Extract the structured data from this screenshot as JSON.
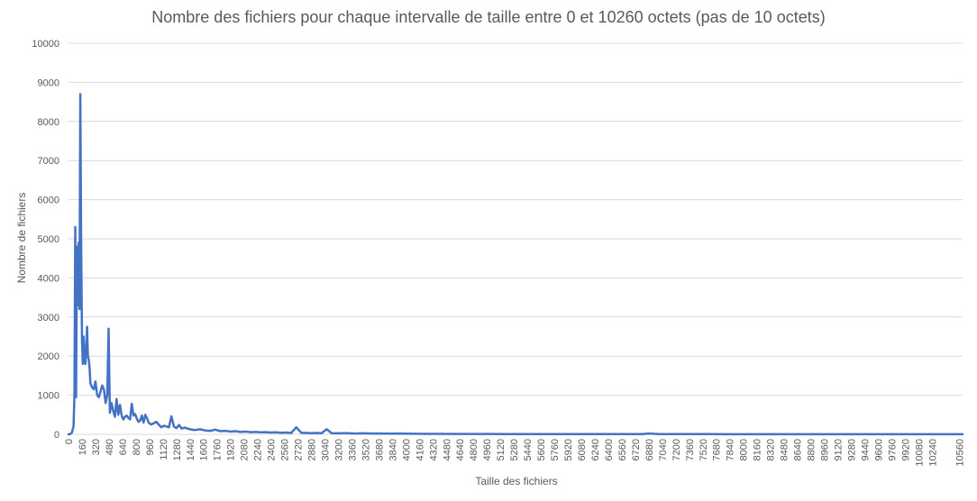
{
  "chart_data": {
    "type": "line",
    "title": "Nombre des fichiers pour chaque intervalle de taille entre 0 et 10260 octets (pas de 10 octets)",
    "xlabel": "Taille des fichiers",
    "ylabel": "Nombre de fichiers",
    "xlim": [
      0,
      10600
    ],
    "ylim": [
      0,
      10000
    ],
    "yticks": [
      0,
      1000,
      2000,
      3000,
      4000,
      5000,
      6000,
      7000,
      8000,
      9000,
      10000
    ],
    "xticks": [
      0,
      160,
      320,
      480,
      640,
      800,
      960,
      1120,
      1280,
      1440,
      1600,
      1760,
      1920,
      2080,
      2240,
      2400,
      2560,
      2720,
      2880,
      3040,
      3200,
      3360,
      3520,
      3680,
      3840,
      4000,
      4160,
      4320,
      4480,
      4640,
      4800,
      4960,
      5120,
      5280,
      5440,
      5600,
      5760,
      5920,
      6080,
      6240,
      6400,
      6560,
      6720,
      6880,
      7040,
      7200,
      7360,
      7520,
      7680,
      7840,
      8000,
      8160,
      8320,
      8480,
      8640,
      8800,
      8960,
      9120,
      9280,
      9440,
      9600,
      9760,
      9920,
      10080,
      10240,
      10560
    ],
    "grid": true,
    "series_color": "#4472c4",
    "points": [
      [
        0,
        0
      ],
      [
        20,
        10
      ],
      [
        40,
        40
      ],
      [
        60,
        200
      ],
      [
        70,
        1000
      ],
      [
        80,
        5300
      ],
      [
        90,
        950
      ],
      [
        100,
        4800
      ],
      [
        110,
        3300
      ],
      [
        120,
        4900
      ],
      [
        130,
        3200
      ],
      [
        140,
        8700
      ],
      [
        150,
        5000
      ],
      [
        160,
        2400
      ],
      [
        170,
        1800
      ],
      [
        180,
        2500
      ],
      [
        190,
        2000
      ],
      [
        200,
        1800
      ],
      [
        210,
        2150
      ],
      [
        220,
        2750
      ],
      [
        230,
        2000
      ],
      [
        240,
        1900
      ],
      [
        250,
        1700
      ],
      [
        260,
        1300
      ],
      [
        280,
        1200
      ],
      [
        300,
        1150
      ],
      [
        320,
        1350
      ],
      [
        340,
        1000
      ],
      [
        360,
        950
      ],
      [
        380,
        1100
      ],
      [
        400,
        1250
      ],
      [
        420,
        1150
      ],
      [
        440,
        800
      ],
      [
        460,
        1000
      ],
      [
        475,
        2700
      ],
      [
        490,
        550
      ],
      [
        510,
        800
      ],
      [
        530,
        600
      ],
      [
        550,
        450
      ],
      [
        570,
        900
      ],
      [
        590,
        500
      ],
      [
        610,
        750
      ],
      [
        630,
        480
      ],
      [
        650,
        380
      ],
      [
        670,
        450
      ],
      [
        690,
        480
      ],
      [
        710,
        420
      ],
      [
        730,
        380
      ],
      [
        750,
        780
      ],
      [
        770,
        480
      ],
      [
        790,
        520
      ],
      [
        810,
        400
      ],
      [
        830,
        320
      ],
      [
        850,
        350
      ],
      [
        870,
        480
      ],
      [
        890,
        300
      ],
      [
        910,
        500
      ],
      [
        930,
        420
      ],
      [
        950,
        300
      ],
      [
        980,
        250
      ],
      [
        1010,
        280
      ],
      [
        1040,
        320
      ],
      [
        1070,
        250
      ],
      [
        1100,
        180
      ],
      [
        1130,
        220
      ],
      [
        1160,
        200
      ],
      [
        1190,
        180
      ],
      [
        1220,
        460
      ],
      [
        1250,
        200
      ],
      [
        1280,
        160
      ],
      [
        1310,
        240
      ],
      [
        1340,
        150
      ],
      [
        1380,
        170
      ],
      [
        1420,
        140
      ],
      [
        1460,
        120
      ],
      [
        1500,
        110
      ],
      [
        1560,
        130
      ],
      [
        1620,
        100
      ],
      [
        1680,
        90
      ],
      [
        1740,
        120
      ],
      [
        1800,
        80
      ],
      [
        1860,
        90
      ],
      [
        1920,
        70
      ],
      [
        1980,
        80
      ],
      [
        2040,
        60
      ],
      [
        2100,
        70
      ],
      [
        2160,
        55
      ],
      [
        2220,
        60
      ],
      [
        2280,
        50
      ],
      [
        2340,
        55
      ],
      [
        2400,
        45
      ],
      [
        2460,
        50
      ],
      [
        2520,
        40
      ],
      [
        2580,
        45
      ],
      [
        2640,
        35
      ],
      [
        2700,
        180
      ],
      [
        2760,
        40
      ],
      [
        2820,
        35
      ],
      [
        2880,
        30
      ],
      [
        2940,
        35
      ],
      [
        3000,
        30
      ],
      [
        3060,
        130
      ],
      [
        3120,
        30
      ],
      [
        3200,
        25
      ],
      [
        3300,
        30
      ],
      [
        3400,
        20
      ],
      [
        3500,
        25
      ],
      [
        3600,
        20
      ],
      [
        3700,
        20
      ],
      [
        3800,
        15
      ],
      [
        3900,
        20
      ],
      [
        4000,
        15
      ],
      [
        4200,
        12
      ],
      [
        4400,
        12
      ],
      [
        4600,
        10
      ],
      [
        4800,
        10
      ],
      [
        5000,
        10
      ],
      [
        5200,
        8
      ],
      [
        5400,
        8
      ],
      [
        5600,
        8
      ],
      [
        5800,
        6
      ],
      [
        6000,
        6
      ],
      [
        6200,
        6
      ],
      [
        6400,
        5
      ],
      [
        6600,
        5
      ],
      [
        6800,
        5
      ],
      [
        6880,
        20
      ],
      [
        7000,
        5
      ],
      [
        7200,
        4
      ],
      [
        7400,
        4
      ],
      [
        7600,
        4
      ],
      [
        7800,
        3
      ],
      [
        8000,
        3
      ],
      [
        8200,
        3
      ],
      [
        8400,
        3
      ],
      [
        8600,
        3
      ],
      [
        8800,
        2
      ],
      [
        9000,
        2
      ],
      [
        9200,
        2
      ],
      [
        9400,
        2
      ],
      [
        9600,
        2
      ],
      [
        9800,
        2
      ],
      [
        10000,
        2
      ],
      [
        10200,
        2
      ],
      [
        10400,
        2
      ],
      [
        10600,
        2
      ]
    ]
  }
}
